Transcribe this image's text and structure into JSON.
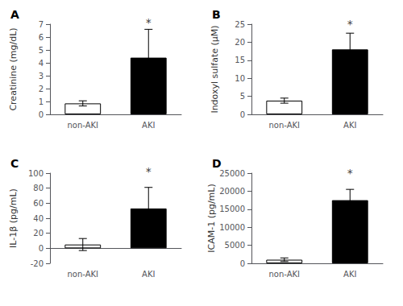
{
  "chart_data": [
    {
      "type": "bar",
      "title": "A",
      "ylabel": "Creatinine (mg/dL)",
      "categories": [
        "non-AKI",
        "AKI"
      ],
      "values": [
        0.85,
        4.4
      ],
      "errors": [
        0.2,
        2.2
      ],
      "colors": [
        "white",
        "black"
      ],
      "ylim": [
        0,
        7
      ],
      "yticks": [
        0,
        1,
        2,
        3,
        4,
        5,
        6,
        7
      ],
      "grid": false,
      "annotations": [
        {
          "text": "*",
          "x": "AKI",
          "y": 6.7
        }
      ]
    },
    {
      "type": "bar",
      "title": "B",
      "ylabel": "Indoxyl sulfate (μM)",
      "categories": [
        "non-AKI",
        "AKI"
      ],
      "values": [
        3.8,
        18.0
      ],
      "errors": [
        0.7,
        4.5
      ],
      "colors": [
        "white",
        "black"
      ],
      "ylim": [
        0,
        25
      ],
      "yticks": [
        0,
        5,
        10,
        15,
        20,
        25
      ],
      "grid": false,
      "annotations": [
        {
          "text": "*",
          "x": "AKI",
          "y": 23.5
        }
      ]
    },
    {
      "type": "bar",
      "title": "C",
      "ylabel": "IL-1β (pg/mL)",
      "categories": [
        "non-AKI",
        "AKI"
      ],
      "values": [
        5.0,
        53.0
      ],
      "errors": [
        8.0,
        28.0
      ],
      "colors": [
        "white",
        "black"
      ],
      "ylim": [
        -20,
        100
      ],
      "yticks": [
        -20,
        0,
        20,
        40,
        60,
        80,
        100
      ],
      "grid": false,
      "annotations": [
        {
          "text": "*",
          "x": "AKI",
          "y": 95
        }
      ]
    },
    {
      "type": "bar",
      "title": "D",
      "ylabel": "ICAM-1 (pg/mL)",
      "categories": [
        "non-AKI",
        "AKI"
      ],
      "values": [
        1000,
        17500
      ],
      "errors": [
        500,
        3000
      ],
      "colors": [
        "white",
        "black"
      ],
      "ylim": [
        0,
        25000
      ],
      "yticks": [
        0,
        5000,
        10000,
        15000,
        20000,
        25000
      ],
      "grid": false,
      "annotations": [
        {
          "text": "*",
          "x": "AKI",
          "y": 23500
        }
      ]
    }
  ]
}
